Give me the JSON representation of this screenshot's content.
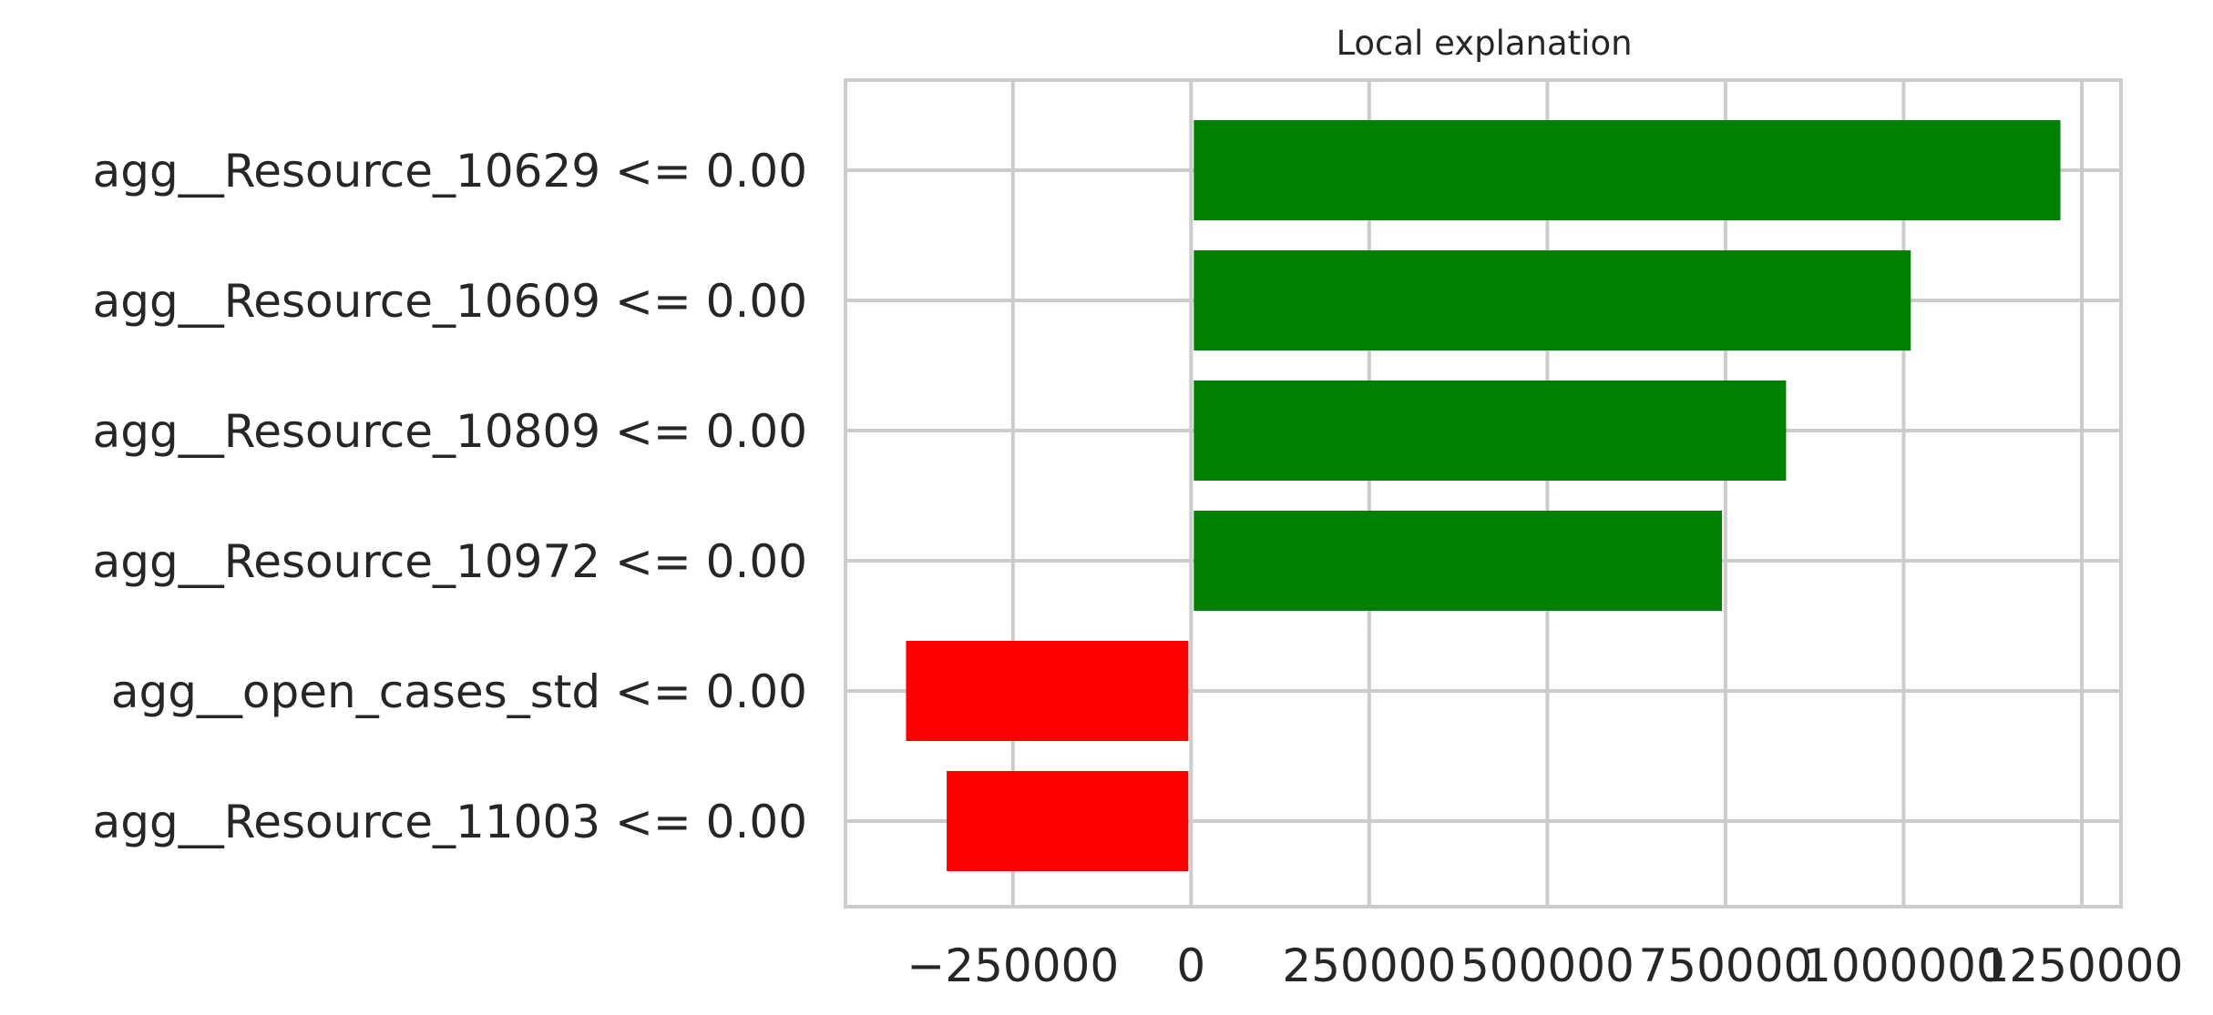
{
  "chart_data": {
    "type": "bar",
    "orientation": "horizontal",
    "title": "Local explanation",
    "xlabel": "",
    "ylabel": "",
    "categories": [
      "agg__Resource_10629 <= 0.00",
      "agg__Resource_10609 <= 0.00",
      "agg__Resource_10809 <= 0.00",
      "agg__Resource_10972 <= 0.00",
      "agg__open_cases_std <= 0.00",
      "agg__Resource_11003 <= 0.00"
    ],
    "values": [
      1220000,
      1010000,
      835000,
      745000,
      -400000,
      -343000
    ],
    "bar_colors": [
      "#008000",
      "#008000",
      "#008000",
      "#008000",
      "#ff0000",
      "#ff0000"
    ],
    "xlim": [
      -485000,
      1305000
    ],
    "xticks": [
      -250000,
      0,
      250000,
      500000,
      750000,
      1000000,
      1250000
    ],
    "xtick_labels": [
      "−250000",
      "0",
      "250000",
      "500000",
      "750000",
      "1000000",
      "1250000"
    ],
    "grid": true,
    "legend": "none"
  }
}
